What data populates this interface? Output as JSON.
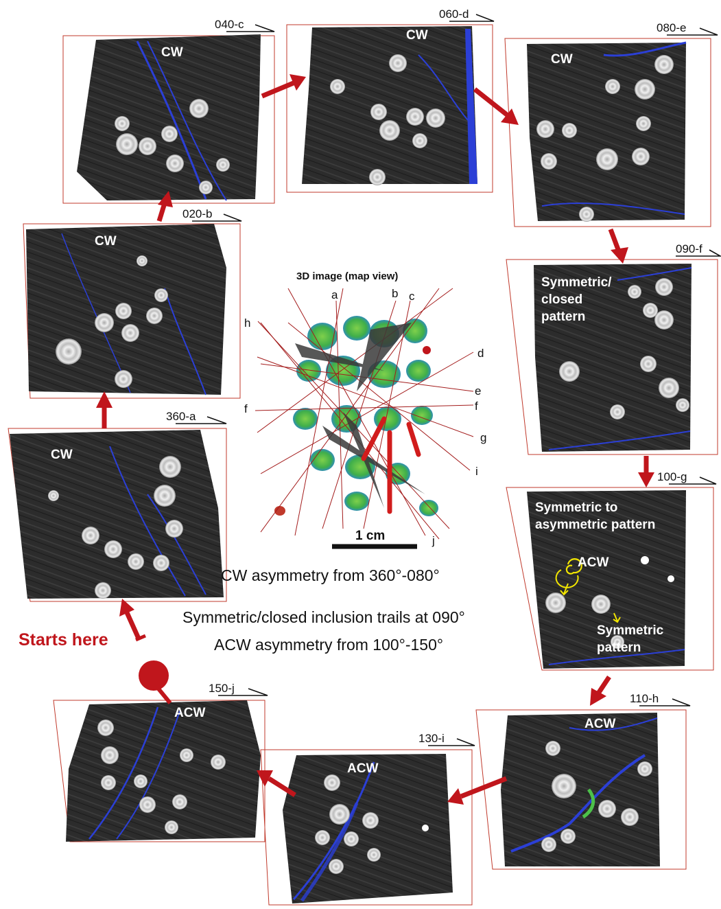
{
  "center": {
    "title": "3D image (map view)",
    "scale_label": "1 cm",
    "plane_letters": [
      "a",
      "b",
      "c",
      "d",
      "e",
      "f",
      "f",
      "g",
      "h",
      "i",
      "j"
    ]
  },
  "panels": {
    "p040c": {
      "tag": "040-c",
      "sense": "CW"
    },
    "p060d": {
      "tag": "060-d",
      "sense": "CW"
    },
    "p080e": {
      "tag": "080-e",
      "sense": "CW"
    },
    "p020b": {
      "tag": "020-b",
      "sense": "CW"
    },
    "p090f": {
      "tag": "090-f",
      "note_1": "Symmetric/",
      "note_2": "closed",
      "note_3": "pattern"
    },
    "p360a": {
      "tag": "360-a",
      "sense": "CW"
    },
    "p100g": {
      "tag": "100-g",
      "note_1": "Symmetric to",
      "note_2": "asymmetric pattern",
      "sense": "ACW",
      "sub_1": "Symmetric",
      "sub_2": "pattern"
    },
    "p150j": {
      "tag": "150-j",
      "sense": "ACW"
    },
    "p130i": {
      "tag": "130-i",
      "sense": "ACW"
    },
    "p110h": {
      "tag": "110-h",
      "sense": "ACW"
    }
  },
  "captions": {
    "cw": "CW asymmetry from 360°-080°",
    "sym": "Symmetric/closed inclusion trails at 090°",
    "acw": "ACW asymmetry from 100°-150°"
  },
  "start_label": "Starts here",
  "colors": {
    "arrow_red": "#c0161c",
    "vein_blue": "#2b3fd6",
    "garnet_white": "#e6e6e6",
    "rock_dark": "#2a2a2a",
    "annotation_yellow": "#f2e600"
  }
}
